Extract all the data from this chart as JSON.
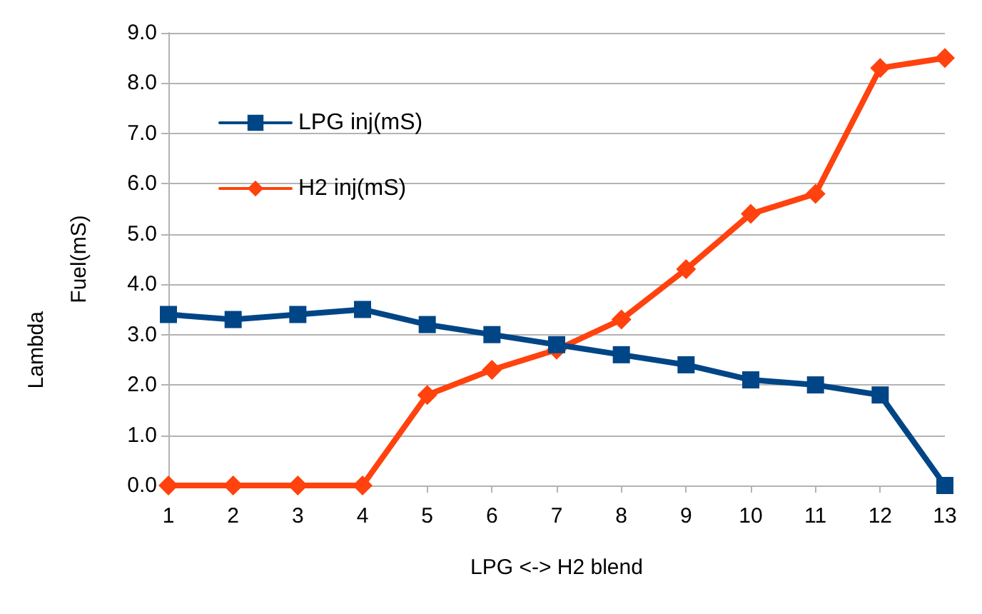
{
  "chart_data": {
    "type": "line",
    "xlabel": "LPG <-> H2 blend",
    "ylabel": "Fuel(mS)",
    "annotations": [
      "Lambda"
    ],
    "x": [
      1,
      2,
      3,
      4,
      5,
      6,
      7,
      8,
      9,
      10,
      11,
      12,
      13
    ],
    "xlim": [
      1,
      13
    ],
    "xticks": [
      1,
      2,
      3,
      4,
      5,
      6,
      7,
      8,
      9,
      10,
      11,
      12,
      13
    ],
    "series": [
      {
        "name": "LPG inj(mS)",
        "color": "#004586",
        "marker": "square",
        "values": [
          3.4,
          3.3,
          3.4,
          3.5,
          3.2,
          3.0,
          2.8,
          2.6,
          2.4,
          2.1,
          2.0,
          1.8,
          0.0
        ]
      },
      {
        "name": "H2 inj(mS)",
        "color": "#ff420e",
        "marker": "diamond",
        "values": [
          0.0,
          0.0,
          0.0,
          0.0,
          1.8,
          2.3,
          2.7,
          3.3,
          4.3,
          5.4,
          5.8,
          8.3,
          8.5
        ]
      }
    ],
    "ylim": [
      0,
      9
    ],
    "yticks": [
      {
        "value": 0,
        "label": "0.0"
      },
      {
        "value": 1,
        "label": "1.0"
      },
      {
        "value": 2,
        "label": "2.0"
      },
      {
        "value": 3,
        "label": "3.0"
      },
      {
        "value": 4,
        "label": "4.0"
      },
      {
        "value": 5,
        "label": "5.0"
      },
      {
        "value": 6,
        "label": "6.0"
      },
      {
        "value": 7,
        "label": "7.0"
      },
      {
        "value": 8,
        "label": "8.0"
      },
      {
        "value": 9,
        "label": "9.0"
      }
    ],
    "grid": "y",
    "legend": "top left",
    "line_style": "solid"
  }
}
